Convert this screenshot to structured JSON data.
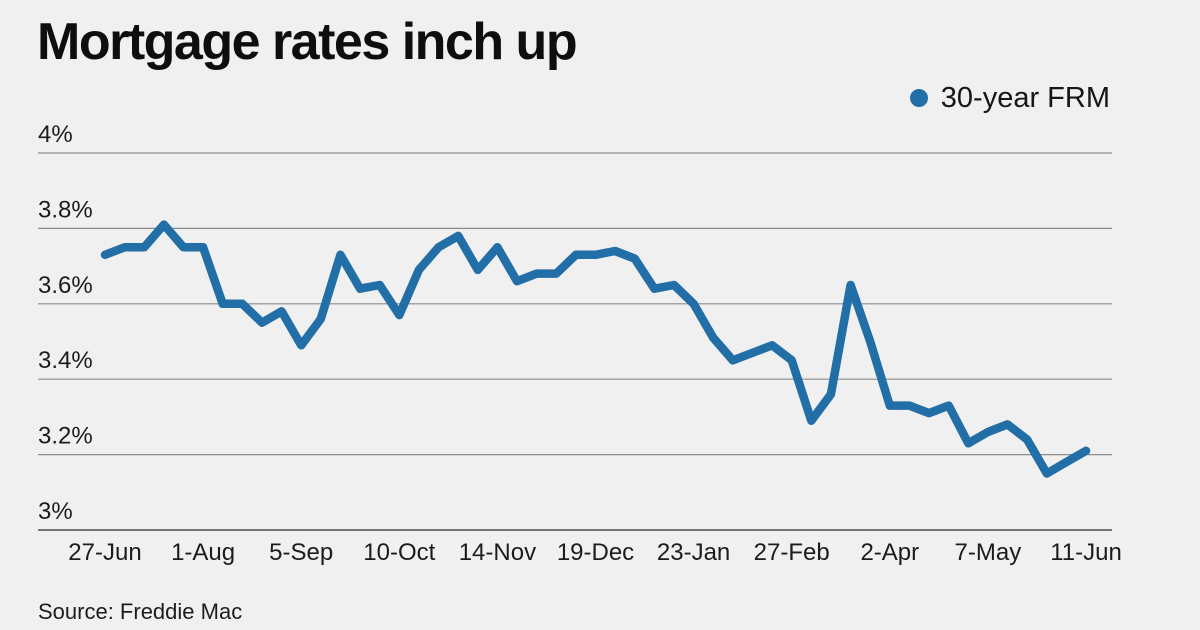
{
  "title": "Mortgage rates inch up",
  "source": "Source: Freddie Mac",
  "legend": {
    "series_label": "30-year FRM"
  },
  "colors": {
    "background": "#f0f0f0",
    "line": "#226ea6",
    "grid": "#8c8c8c",
    "axis": "#4d4d4d",
    "tick_text": "#1c1c1c"
  },
  "chart_data": {
    "type": "line",
    "title": "Mortgage rates inch up",
    "source": "Freddie Mac",
    "frequency": "weekly",
    "grid": "horizontal-only",
    "legend_position": "top-right",
    "ylim": [
      3.0,
      4.0
    ],
    "y_ticks": [
      {
        "value": 4.0,
        "label": "4%"
      },
      {
        "value": 3.8,
        "label": "3.8%"
      },
      {
        "value": 3.6,
        "label": "3.6%"
      },
      {
        "value": 3.4,
        "label": "3.4%"
      },
      {
        "value": 3.2,
        "label": "3.2%"
      },
      {
        "value": 3.0,
        "label": "3%"
      }
    ],
    "x_ticks": [
      {
        "index": 0,
        "label": "27-Jun"
      },
      {
        "index": 5,
        "label": "1-Aug"
      },
      {
        "index": 10,
        "label": "5-Sep"
      },
      {
        "index": 15,
        "label": "10-Oct"
      },
      {
        "index": 20,
        "label": "14-Nov"
      },
      {
        "index": 25,
        "label": "19-Dec"
      },
      {
        "index": 30,
        "label": "23-Jan"
      },
      {
        "index": 35,
        "label": "27-Feb"
      },
      {
        "index": 40,
        "label": "2-Apr"
      },
      {
        "index": 45,
        "label": "7-May"
      },
      {
        "index": 50,
        "label": "11-Jun"
      }
    ],
    "series": [
      {
        "name": "30-year FRM",
        "color": "#226ea6",
        "values": [
          3.73,
          3.75,
          3.75,
          3.81,
          3.75,
          3.75,
          3.6,
          3.6,
          3.55,
          3.58,
          3.49,
          3.56,
          3.73,
          3.64,
          3.65,
          3.57,
          3.69,
          3.75,
          3.78,
          3.69,
          3.75,
          3.66,
          3.68,
          3.68,
          3.73,
          3.73,
          3.74,
          3.72,
          3.64,
          3.65,
          3.6,
          3.51,
          3.45,
          3.47,
          3.49,
          3.45,
          3.29,
          3.36,
          3.65,
          3.5,
          3.33,
          3.33,
          3.31,
          3.33,
          3.23,
          3.26,
          3.28,
          3.24,
          3.15,
          3.18,
          3.21
        ]
      }
    ]
  }
}
